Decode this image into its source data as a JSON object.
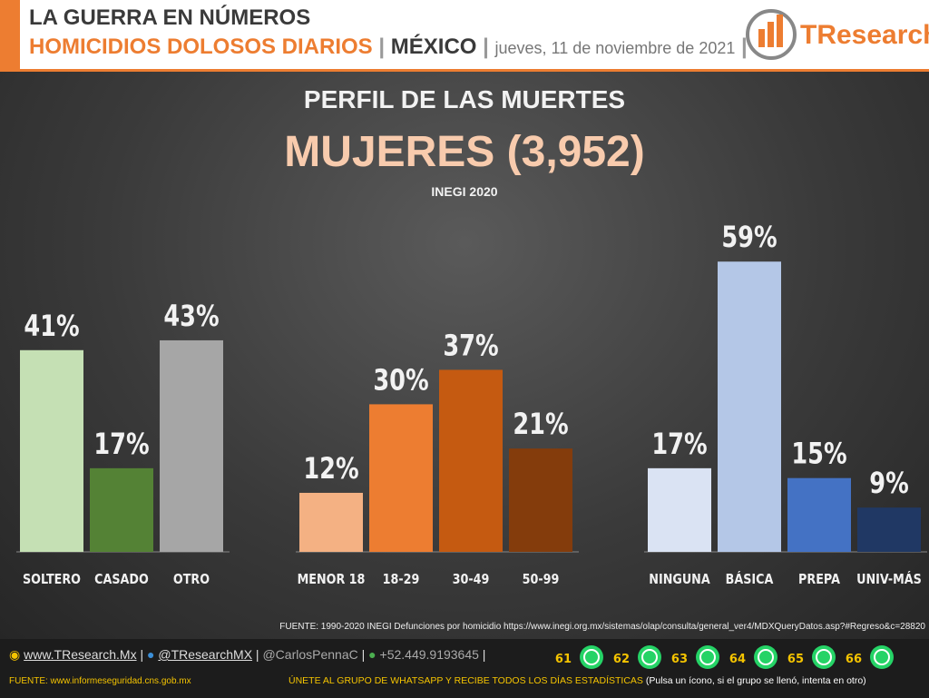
{
  "header": {
    "line1": "LA GUERRA EN NÚMEROS",
    "line2": "HOMICIDIOS DOLOSOS DIARIOS",
    "place": "MÉXICO",
    "date": "jueves, 11 de noviembre de 2021",
    "logo": "TResearch"
  },
  "title": "PERFIL DE LAS MUERTES",
  "subtitle": "MUJERES (3,952)",
  "note": "INEGI 2020",
  "source": "FUENTE: 1990-2020 INEGI Defunciones por homicidio https://www.inegi.org.mx/sistemas/olap/consulta/general_ver4/MDXQueryDatos.asp?#Regreso&c=28820",
  "chart_data": [
    {
      "type": "bar",
      "categories": [
        "SOLTERO",
        "CASADO",
        "OTRO"
      ],
      "values": [
        41,
        17,
        43
      ],
      "value_labels": [
        "41%",
        "17%",
        "43%"
      ],
      "colors": [
        "#c5e0b4",
        "#548235",
        "#a6a6a6"
      ]
    },
    {
      "type": "bar",
      "categories": [
        "MENOR 18",
        "18-29",
        "30-49",
        "50-99"
      ],
      "values": [
        12,
        30,
        37,
        21
      ],
      "value_labels": [
        "12%",
        "30%",
        "37%",
        "21%"
      ],
      "colors": [
        "#f4b183",
        "#ed7d31",
        "#c55a11",
        "#843c0c"
      ]
    },
    {
      "type": "bar",
      "categories": [
        "NINGUNA",
        "BÁSICA",
        "PREPA",
        "UNIV-MÁS"
      ],
      "values": [
        17,
        59,
        15,
        9
      ],
      "value_labels": [
        "17%",
        "59%",
        "15%",
        "9%"
      ],
      "colors": [
        "#dae3f3",
        "#b4c7e7",
        "#4472c4",
        "#203864"
      ]
    }
  ],
  "footer": {
    "web": "www.TResearch.Mx",
    "twitter": "@TResearchMX",
    "twitter2": "@CarlosPennaC",
    "phone": "+52.449.9193645",
    "groups": [
      61,
      62,
      63,
      64,
      65,
      66
    ],
    "fuente": "FUENTE: www.informeseguridad.cns.gob.mx",
    "join": "ÚNETE AL GRUPO DE WHATSAPP Y RECIBE TODOS LOS DÍAS ESTADÍSTICAS",
    "hint": "(Pulsa un ícono, si el grupo se llenó, intenta en otro)"
  }
}
